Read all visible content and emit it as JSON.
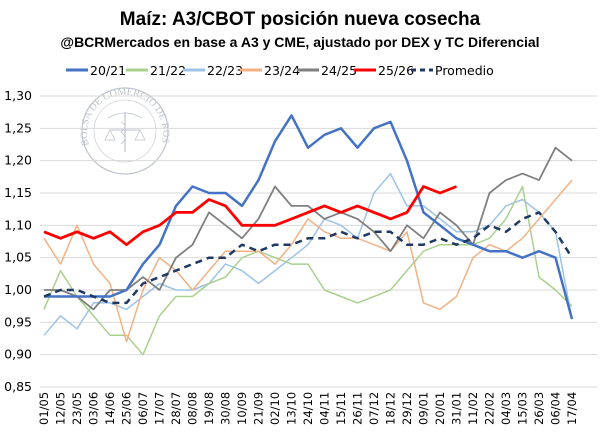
{
  "chart_data": {
    "type": "line",
    "title": "Maíz: A3/CBOT posición nueva cosecha",
    "subtitle": "@BCRMercados en base a A3 y CME, ajustado por DEX y TC Diferencial",
    "xlabel": "",
    "ylabel": "",
    "ylim": [
      0.85,
      1.3
    ],
    "yticks": [
      "0,85",
      "0,90",
      "0,95",
      "1,00",
      "1,05",
      "1,10",
      "1,15",
      "1,20",
      "1,25",
      "1,30"
    ],
    "grid": "horizontal",
    "legend": "top",
    "watermark": "BOLSA DE COMERCIO DE ROSARIO",
    "categories": [
      "01/05",
      "12/05",
      "23/05",
      "03/06",
      "14/06",
      "25/06",
      "06/07",
      "17/07",
      "28/07",
      "08/08",
      "19/08",
      "30/08",
      "10/09",
      "21/09",
      "02/10",
      "13/10",
      "24/10",
      "04/11",
      "15/11",
      "26/11",
      "07/12",
      "18/12",
      "29/12",
      "09/01",
      "20/01",
      "31/01",
      "11/02",
      "22/02",
      "04/03",
      "15/03",
      "26/03",
      "06/04",
      "17/04"
    ],
    "series": [
      {
        "name": "20/21",
        "color": "#4472C4",
        "dash": false,
        "width": 2.5,
        "values": [
          0.99,
          0.99,
          0.99,
          0.99,
          0.99,
          1.0,
          1.04,
          1.07,
          1.13,
          1.16,
          1.15,
          1.15,
          1.13,
          1.17,
          1.23,
          1.27,
          1.22,
          1.24,
          1.25,
          1.22,
          1.25,
          1.26,
          1.2,
          1.12,
          1.1,
          1.08,
          1.07,
          1.06,
          1.06,
          1.05,
          1.06,
          1.05,
          0.955
        ]
      },
      {
        "name": "21/22",
        "color": "#A9D18E",
        "dash": false,
        "width": 1.5,
        "values": [
          0.97,
          1.03,
          0.99,
          0.96,
          0.93,
          0.93,
          0.9,
          0.96,
          0.99,
          0.99,
          1.01,
          1.02,
          1.05,
          1.06,
          1.05,
          1.04,
          1.04,
          1.0,
          0.99,
          0.98,
          0.99,
          1.0,
          1.03,
          1.06,
          1.07,
          1.07,
          1.07,
          1.08,
          1.11,
          1.16,
          1.02,
          1.0,
          0.975
        ]
      },
      {
        "name": "22/23",
        "color": "#9DC3E6",
        "dash": false,
        "width": 1.5,
        "values": [
          0.93,
          0.96,
          0.94,
          0.98,
          0.98,
          0.97,
          0.99,
          1.01,
          1.0,
          1.0,
          1.01,
          1.04,
          1.03,
          1.01,
          1.03,
          1.05,
          1.07,
          1.11,
          1.1,
          1.08,
          1.15,
          1.18,
          1.13,
          1.13,
          1.11,
          1.09,
          1.09,
          1.1,
          1.13,
          1.14,
          1.12,
          1.09,
          0.955
        ]
      },
      {
        "name": "23/24",
        "color": "#F4B183",
        "dash": false,
        "width": 1.5,
        "values": [
          1.08,
          1.04,
          1.1,
          1.04,
          1.01,
          0.92,
          1.0,
          1.05,
          1.03,
          1.0,
          1.03,
          1.06,
          1.06,
          1.06,
          1.04,
          1.07,
          1.11,
          1.09,
          1.08,
          1.08,
          1.07,
          1.06,
          1.09,
          0.98,
          0.97,
          0.99,
          1.05,
          1.07,
          1.06,
          1.08,
          1.11,
          1.14,
          1.17
        ]
      },
      {
        "name": "24/25",
        "color": "#7F7F7F",
        "dash": false,
        "width": 1.8,
        "values": [
          1.0,
          1.0,
          0.99,
          0.97,
          1.0,
          1.0,
          1.02,
          1.0,
          1.05,
          1.07,
          1.12,
          1.1,
          1.08,
          1.11,
          1.16,
          1.13,
          1.13,
          1.11,
          1.12,
          1.11,
          1.09,
          1.06,
          1.1,
          1.08,
          1.12,
          1.1,
          1.07,
          1.15,
          1.17,
          1.18,
          1.17,
          1.22,
          1.2
        ]
      },
      {
        "name": "25/26",
        "color": "#FF0000",
        "dash": false,
        "width": 2.8,
        "values": [
          1.09,
          1.08,
          1.09,
          1.08,
          1.09,
          1.07,
          1.09,
          1.1,
          1.12,
          1.12,
          1.14,
          1.13,
          1.1,
          1.1,
          1.1,
          1.11,
          1.12,
          1.13,
          1.12,
          1.13,
          1.12,
          1.11,
          1.12,
          1.16,
          1.15,
          1.16,
          null,
          null,
          null,
          null,
          null,
          null,
          null
        ]
      },
      {
        "name": "Promedio",
        "color": "#1F3864",
        "dash": true,
        "width": 2.5,
        "values": [
          0.99,
          1.0,
          1.0,
          0.99,
          0.98,
          0.98,
          1.01,
          1.02,
          1.03,
          1.04,
          1.05,
          1.05,
          1.07,
          1.06,
          1.07,
          1.07,
          1.08,
          1.08,
          1.09,
          1.08,
          1.09,
          1.09,
          1.07,
          1.07,
          1.08,
          1.07,
          1.08,
          1.1,
          1.09,
          1.11,
          1.12,
          1.09,
          1.05
        ]
      }
    ]
  }
}
